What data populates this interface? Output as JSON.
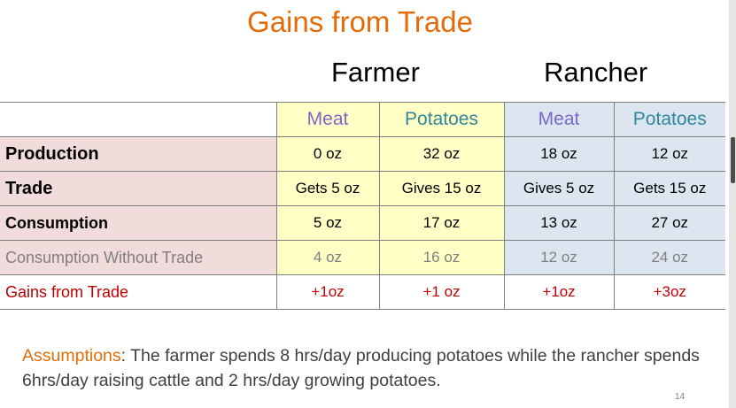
{
  "title": "Gains from Trade",
  "groups": {
    "farmer": "Farmer",
    "rancher": "Rancher"
  },
  "columns": [
    "Meat",
    "Potatoes",
    "Meat",
    "Potatoes"
  ],
  "rows": [
    {
      "label": "Production",
      "values": [
        "0 oz",
        "32 oz",
        "18 oz",
        "12 oz"
      ]
    },
    {
      "label": "Trade",
      "values": [
        "Gets 5 oz",
        "Gives 15 oz",
        "Gives 5 oz",
        "Gets 15 oz"
      ]
    },
    {
      "label": "Consumption",
      "values": [
        "5 oz",
        "17 oz",
        "13 oz",
        "27 oz"
      ]
    },
    {
      "label": "Consumption Without Trade",
      "values": [
        "4 oz",
        "16 oz",
        "12 oz",
        "24 oz"
      ]
    },
    {
      "label": "Gains from Trade",
      "values": [
        "+1oz",
        "+1 oz",
        "+1oz",
        "+3oz"
      ]
    }
  ],
  "assumptions": {
    "lead": "Assumptions",
    "text": ": The farmer spends 8 hrs/day producing potatoes while the rancher spends 6hrs/day raising cattle and 2 hrs/day growing potatoes."
  },
  "page_number": "14",
  "colors": {
    "title": "#e36c0a",
    "label_bg": "#f2dcdb",
    "farmer_bg": "#ffffc6",
    "rancher_bg": "#dce6f1",
    "gain_text": "#c00000"
  }
}
